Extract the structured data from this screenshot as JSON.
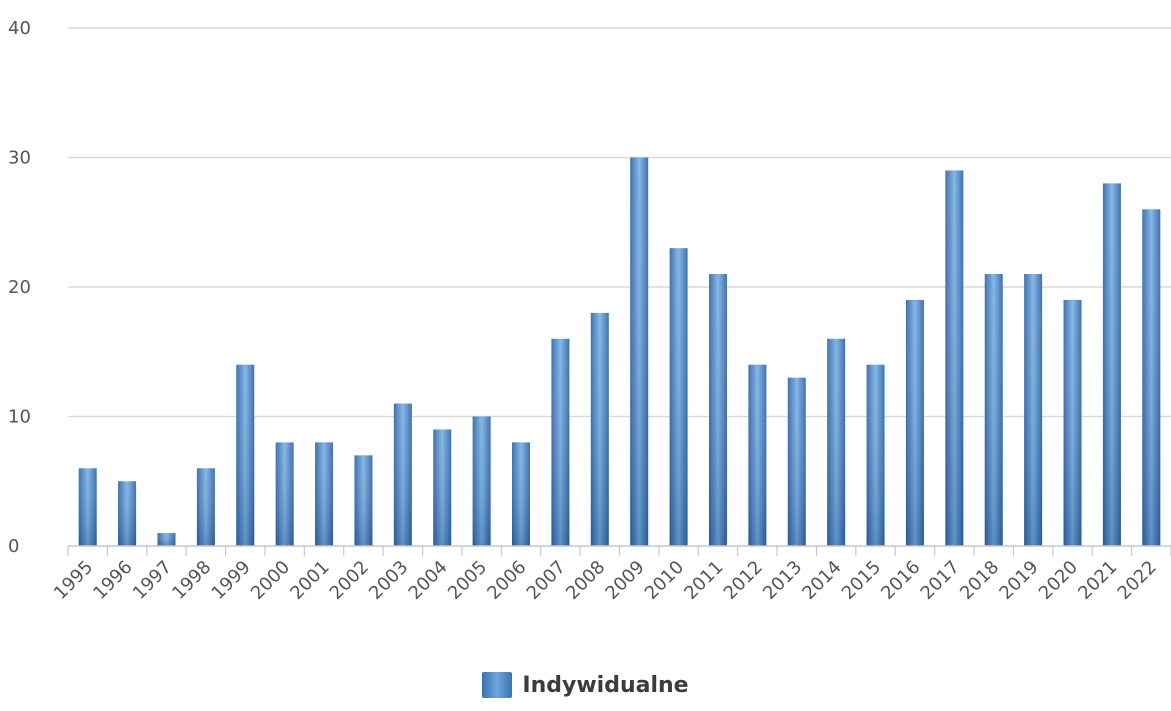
{
  "chart_data": {
    "type": "bar",
    "categories": [
      "1995",
      "1996",
      "1997",
      "1998",
      "1999",
      "2000",
      "2001",
      "2002",
      "2003",
      "2004",
      "2005",
      "2006",
      "2007",
      "2008",
      "2009",
      "2010",
      "2011",
      "2012",
      "2013",
      "2014",
      "2015",
      "2016",
      "2017",
      "2018",
      "2019",
      "2020",
      "2021",
      "2022"
    ],
    "series": [
      {
        "name": "Indywidualne",
        "values": [
          6,
          5,
          1,
          6,
          14,
          8,
          8,
          7,
          11,
          9,
          10,
          8,
          16,
          18,
          30,
          23,
          21,
          14,
          13,
          16,
          14,
          19,
          29,
          21,
          21,
          19,
          28,
          26
        ]
      }
    ],
    "ylim": [
      0,
      40
    ],
    "yticks": [
      "0",
      "10",
      "20",
      "30",
      "40"
    ],
    "grid": true,
    "legend_position": "bottom-center",
    "colors": {
      "bar": "#4a86c6",
      "bar_dark": "#2f66a8",
      "bar_light": "#7ab2e4",
      "grid": "#d9d9d9",
      "axis": "#c8c8c8",
      "text": "#555555"
    }
  }
}
